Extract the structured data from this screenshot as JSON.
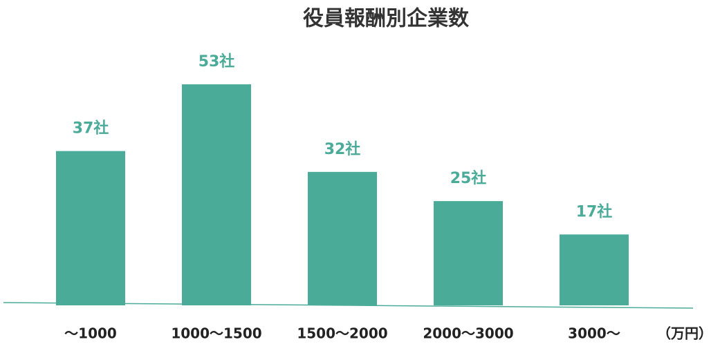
{
  "chart_data": {
    "type": "bar",
    "title": "役員報酬別企業数",
    "categories": [
      "～1000",
      "1000～1500",
      "1500～2000",
      "2000～3000",
      "3000～"
    ],
    "values": [
      37,
      53,
      32,
      25,
      17
    ],
    "value_labels": [
      "37社",
      "53社",
      "32社",
      "25社",
      "17社"
    ],
    "x_label": "（万円）",
    "color": "#4aab99",
    "ylim": [
      0,
      55
    ]
  }
}
